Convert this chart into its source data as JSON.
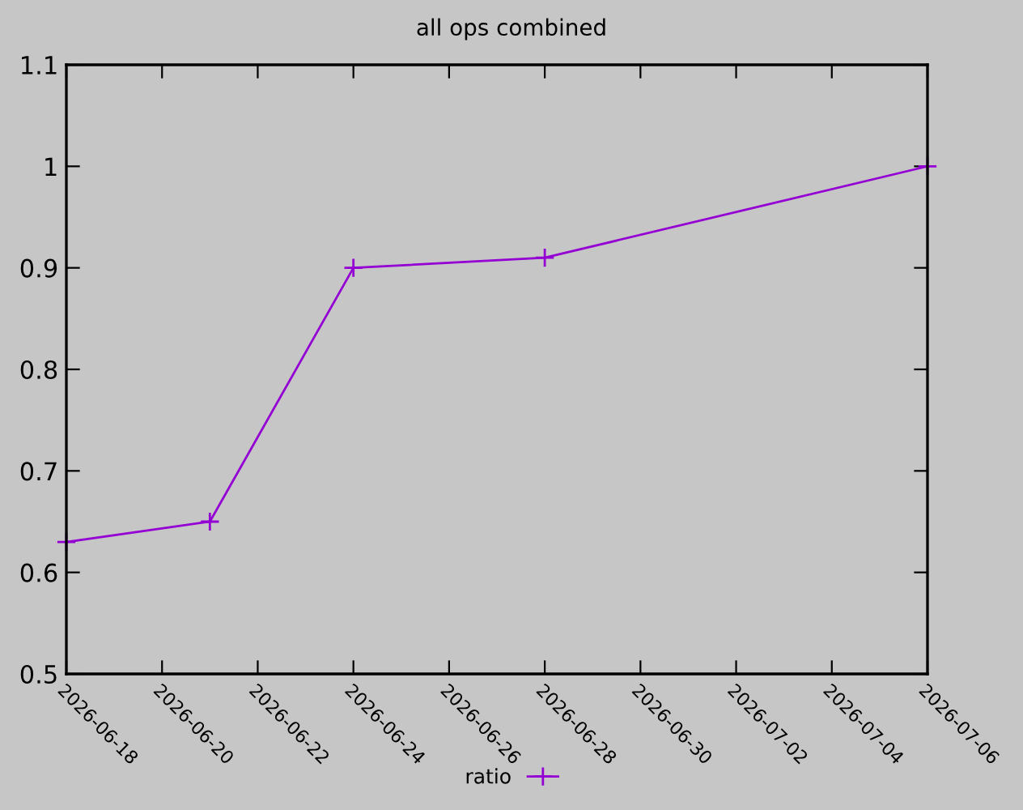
{
  "chart_data": {
    "type": "line",
    "title": "all ops combined",
    "x": [
      "2026-06-18",
      "2026-06-21",
      "2026-06-24",
      "2026-06-28",
      "2026-07-06"
    ],
    "series": [
      {
        "name": "ratio",
        "color": "#9400d3",
        "values": [
          0.63,
          0.65,
          0.9,
          0.91,
          1.0
        ]
      }
    ],
    "xlim": [
      "2026-06-18",
      "2026-07-06"
    ],
    "xticks": [
      "2026-06-18",
      "2026-06-20",
      "2026-06-22",
      "2026-06-24",
      "2026-06-26",
      "2026-06-28",
      "2026-06-30",
      "2026-07-02",
      "2026-07-04",
      "2026-07-06"
    ],
    "ylim": [
      0.5,
      1.1
    ],
    "yticks": [
      0.5,
      0.6,
      0.7,
      0.8,
      0.9,
      1,
      1.1
    ],
    "marker": "cross",
    "line_style": "solid",
    "legend": "bottom",
    "grid": false
  }
}
